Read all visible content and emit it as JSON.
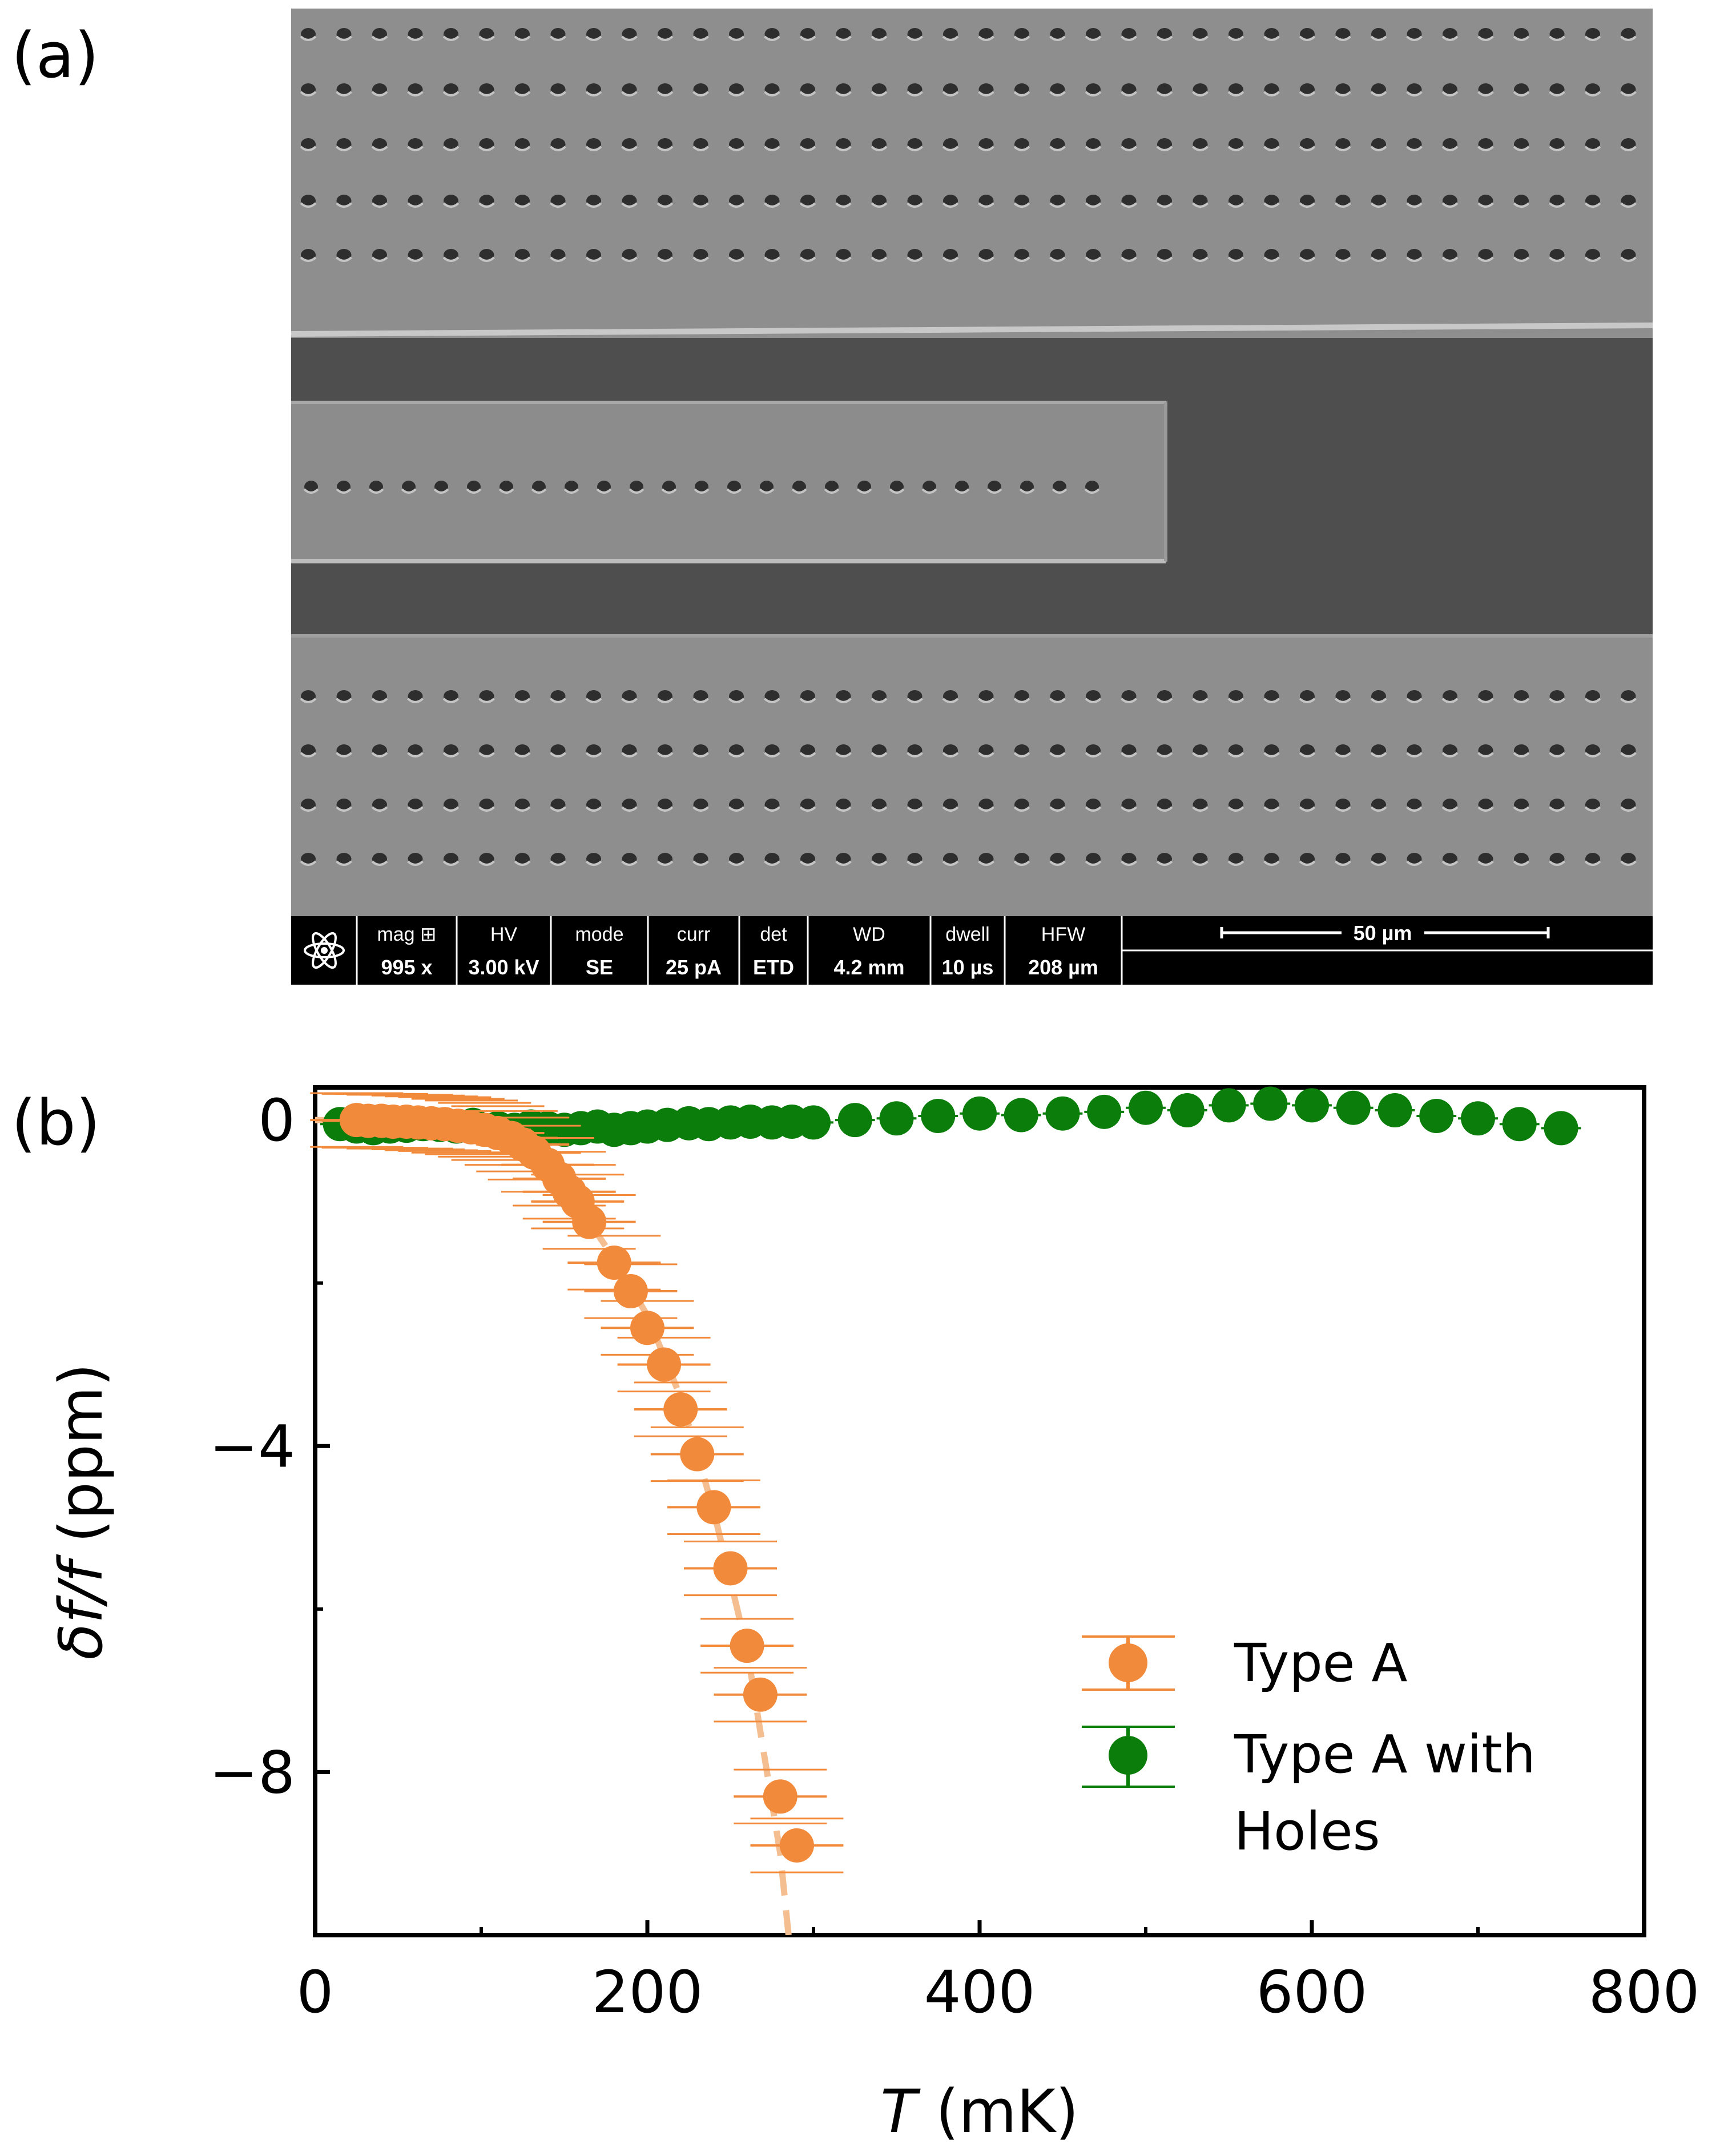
{
  "panel_a": {
    "label": "(a)",
    "info_bar": {
      "fields": [
        {
          "name": "mag",
          "label": "mag ⊞",
          "value": "995 x"
        },
        {
          "name": "hv",
          "label": "HV",
          "value": "3.00 kV"
        },
        {
          "name": "mode",
          "label": "mode",
          "value": "SE"
        },
        {
          "name": "curr",
          "label": "curr",
          "value": "25 pA"
        },
        {
          "name": "det",
          "label": "det",
          "value": "ETD"
        },
        {
          "name": "wd",
          "label": "WD",
          "value": "4.2 mm"
        },
        {
          "name": "dwell",
          "label": "dwell",
          "value": "10 µs"
        },
        {
          "name": "hfw",
          "label": "HFW",
          "value": "208 µm"
        }
      ],
      "scale_bar": "50 µm"
    },
    "colors": {
      "surface": "#8f8f8f",
      "trench": "#4e4e4e",
      "hole": "#2e2e2e",
      "info_bar": "#000000"
    }
  },
  "panel_b": {
    "label": "(b)",
    "chart_data": {
      "type": "scatter",
      "xlabel_italic": "T",
      "xlabel_rest": " (mK)",
      "ylabel_italic": "δf/f",
      "ylabel_rest": " (ppm)",
      "xlim": [
        0,
        800
      ],
      "ylim": [
        -10,
        0.4
      ],
      "x_major_ticks": [
        0,
        200,
        400,
        600,
        800
      ],
      "x_tick_labels": [
        "0",
        "200",
        "400",
        "600",
        "800"
      ],
      "x_minor_ticks": [
        100,
        300,
        500,
        700
      ],
      "y_major_ticks": [
        0,
        -4,
        -8
      ],
      "y_tick_labels": [
        "0",
        "−4",
        "−8"
      ],
      "y_minor_ticks": [
        -2,
        -6
      ],
      "legend": {
        "position": "lower-right"
      },
      "series": [
        {
          "name": "Type A with Holes",
          "legend_lines": [
            "Type A with",
            "Holes"
          ],
          "color": "#0a7d0a",
          "x": [
            15,
            25,
            35,
            45,
            55,
            65,
            75,
            85,
            95,
            110,
            120,
            130,
            140,
            150,
            160,
            170,
            180,
            190,
            200,
            212,
            225,
            237,
            250,
            262,
            275,
            287,
            300,
            325,
            350,
            375,
            400,
            425,
            450,
            475,
            500,
            525,
            550,
            575,
            600,
            625,
            650,
            675,
            700,
            725,
            750
          ],
          "y": [
            -0.05,
            -0.08,
            -0.1,
            -0.08,
            -0.07,
            -0.05,
            -0.06,
            -0.08,
            -0.06,
            -0.1,
            -0.12,
            -0.08,
            -0.1,
            -0.12,
            -0.1,
            -0.08,
            -0.12,
            -0.1,
            -0.08,
            -0.06,
            -0.04,
            -0.05,
            -0.03,
            -0.02,
            -0.03,
            -0.02,
            -0.03,
            0.0,
            0.02,
            0.05,
            0.08,
            0.06,
            0.08,
            0.1,
            0.15,
            0.12,
            0.18,
            0.2,
            0.18,
            0.15,
            0.12,
            0.05,
            0.02,
            -0.05,
            -0.1
          ],
          "xerr": 12
        },
        {
          "name": "Type A",
          "legend_lines": [
            "Type A"
          ],
          "color": "#f28a3c",
          "x": [
            25,
            32,
            40,
            47,
            55,
            62,
            70,
            78,
            86,
            94,
            102,
            110,
            118,
            125,
            132,
            140,
            147,
            153,
            158,
            165,
            180,
            190,
            200,
            210,
            220,
            230,
            240,
            250,
            260,
            268,
            280,
            290
          ],
          "y": [
            0.0,
            -0.01,
            -0.01,
            -0.02,
            -0.02,
            -0.03,
            -0.04,
            -0.05,
            -0.07,
            -0.09,
            -0.12,
            -0.16,
            -0.22,
            -0.3,
            -0.4,
            -0.55,
            -0.72,
            -0.88,
            -1.0,
            -1.25,
            -1.75,
            -2.1,
            -2.55,
            -3.0,
            -3.55,
            -4.1,
            -4.75,
            -5.5,
            -6.45,
            -7.05,
            -8.3,
            -8.9
          ],
          "xerr": 28,
          "yerr": 0.12,
          "fit": {
            "style": "dashed",
            "x": [
              0,
              40,
              60,
              80,
              100,
              120,
              140,
              160,
              180,
              200,
              220,
              240,
              260,
              280,
              285
            ],
            "y": [
              0.0,
              -0.01,
              -0.02,
              -0.05,
              -0.1,
              -0.2,
              -0.5,
              -1.1,
              -1.7,
              -2.4,
              -3.4,
              -4.8,
              -6.5,
              -9.0,
              -10.0
            ]
          }
        }
      ]
    }
  }
}
